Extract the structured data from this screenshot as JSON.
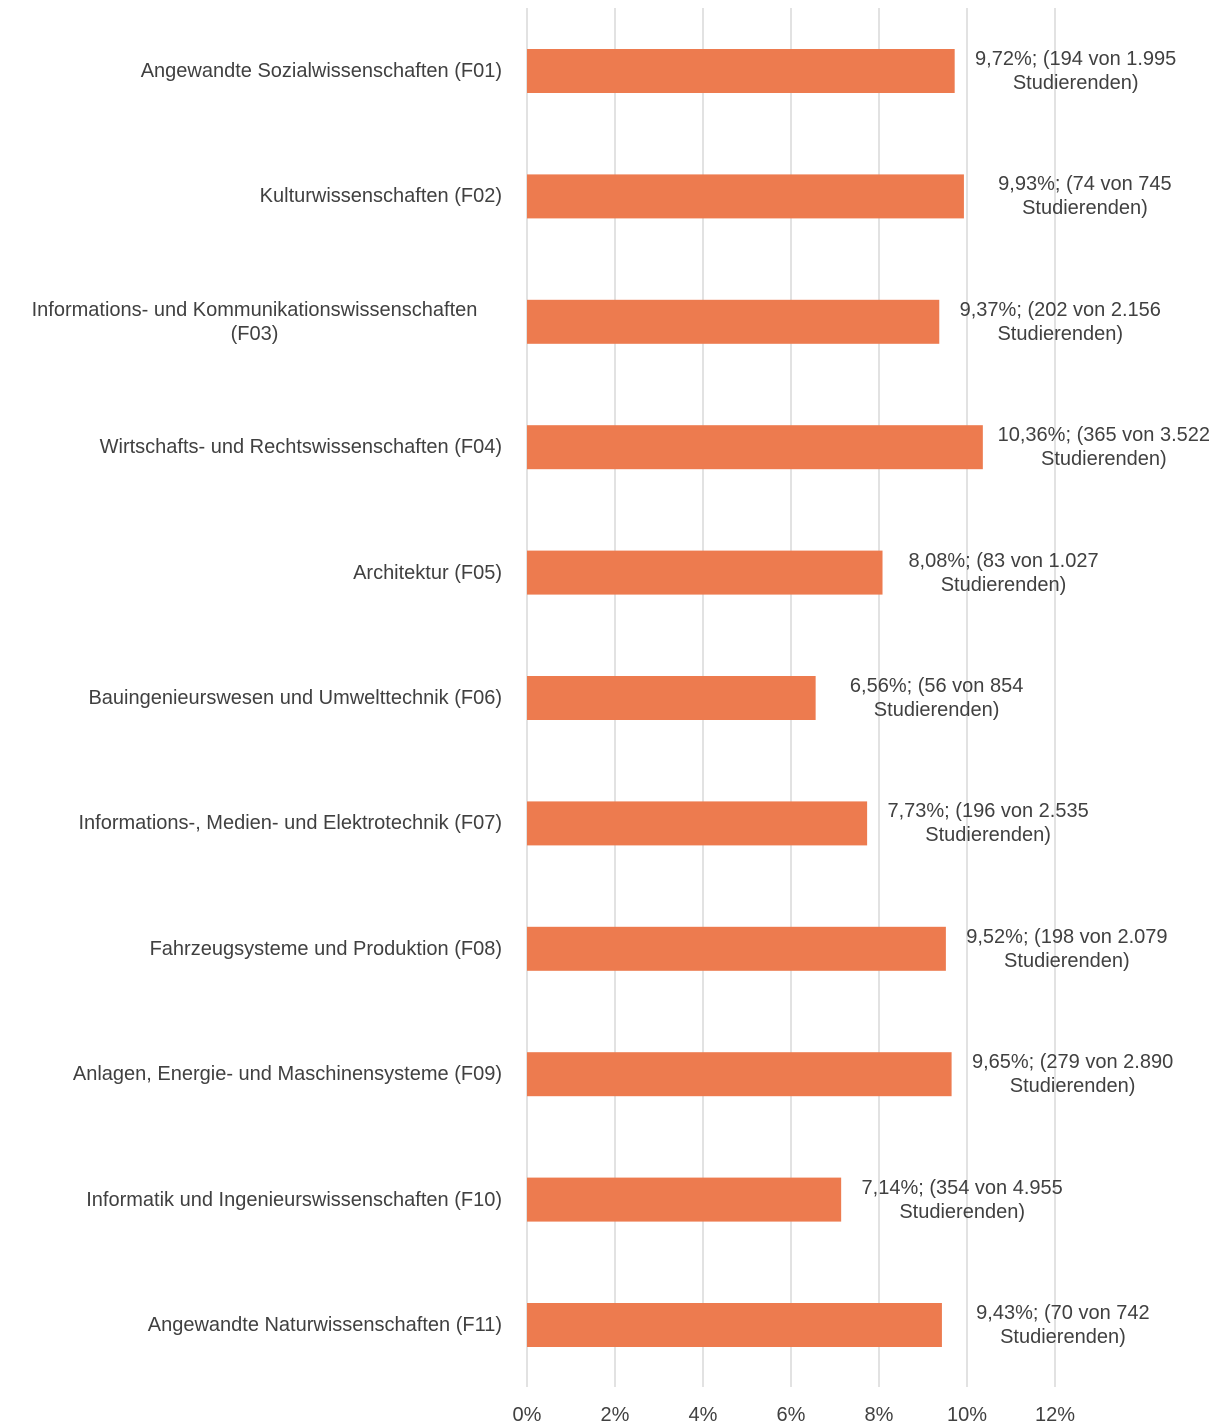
{
  "chart_data": {
    "type": "barh",
    "categories": [
      "Angewandte Sozialwissenschaften (F01)",
      "Kulturwissenschaften (F02)",
      "Informations- und Kommunikationswissenschaften (F03)",
      "Wirtschafts- und Rechtswissenschaften (F04)",
      "Architektur (F05)",
      "Bauingenieurswesen und Umwelttechnik (F06)",
      "Informations-, Medien- und Elektrotechnik (F07)",
      "Fahrzeugsysteme und Produktion (F08)",
      "Anlagen, Energie- und Maschinensysteme (F09)",
      "Informatik und Ingenieurswissenschaften (F10)",
      "Angewandte Naturwissenschaften (F11)"
    ],
    "values": [
      9.72,
      9.93,
      9.37,
      10.36,
      8.08,
      6.56,
      7.73,
      9.52,
      9.65,
      7.14,
      9.43
    ],
    "value_labels": [
      "9,72%; (194 von 1.995 Studierenden)",
      "9,93%; (74 von 745 Studierenden)",
      "9,37%; (202 von 2.156 Studierenden)",
      "10,36%; (365 von 3.522 Studierenden)",
      "8,08%; (83 von 1.027 Studierenden)",
      "6,56%; (56 von 854 Studierenden)",
      "7,73%; (196 von 2.535 Studierenden)",
      "9,52%; (198 von 2.079 Studierenden)",
      "9,65%; (279 von 2.890 Studierenden)",
      "7,14%; (354 von 4.955 Studierenden)",
      "9,43%; (70 von 742 Studierenden)"
    ],
    "color": "#ed7b4f",
    "xlim": [
      0,
      12
    ],
    "xticks": [
      {
        "value": 0,
        "label": "0%"
      },
      {
        "value": 2,
        "label": "2%"
      },
      {
        "value": 4,
        "label": "4%"
      },
      {
        "value": 6,
        "label": "6%"
      },
      {
        "value": 8,
        "label": "8%"
      },
      {
        "value": 10,
        "label": "10%"
      },
      {
        "value": 12,
        "label": "12%"
      }
    ],
    "grid": true
  }
}
